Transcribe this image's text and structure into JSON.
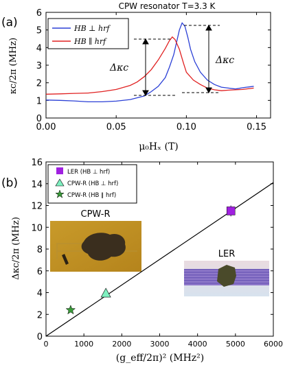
{
  "chart_data": [
    {
      "panel_label": "(a)",
      "type": "line",
      "title": "CPW resonator  T=3.3 K",
      "xlabel": "μ₀Hₓ  (T)",
      "ylabel": "κc/2π (MHz)",
      "xlim": [
        0.0,
        0.16
      ],
      "ylim": [
        0,
        6
      ],
      "xticks": [
        "0.00",
        "0.05",
        "0.10",
        "0.15"
      ],
      "yticks": [
        "0",
        "1",
        "2",
        "3",
        "4",
        "5",
        "6"
      ],
      "legend_position": "top-left",
      "annotation": "Δκc",
      "series": [
        {
          "name": "HB ⊥ hrf",
          "color": "#2a3fd6",
          "points": [
            [
              0.0,
              1.02
            ],
            [
              0.01,
              1.0
            ],
            [
              0.02,
              0.97
            ],
            [
              0.03,
              0.92
            ],
            [
              0.04,
              0.92
            ],
            [
              0.05,
              0.96
            ],
            [
              0.06,
              1.05
            ],
            [
              0.07,
              1.25
            ],
            [
              0.075,
              1.5
            ],
            [
              0.08,
              1.8
            ],
            [
              0.085,
              2.3
            ],
            [
              0.088,
              2.9
            ],
            [
              0.091,
              3.6
            ],
            [
              0.093,
              4.3
            ],
            [
              0.095,
              5.0
            ],
            [
              0.097,
              5.4
            ],
            [
              0.099,
              5.2
            ],
            [
              0.101,
              4.6
            ],
            [
              0.103,
              3.9
            ],
            [
              0.106,
              3.2
            ],
            [
              0.11,
              2.6
            ],
            [
              0.115,
              2.15
            ],
            [
              0.12,
              1.9
            ],
            [
              0.125,
              1.75
            ],
            [
              0.13,
              1.7
            ],
            [
              0.135,
              1.65
            ],
            [
              0.14,
              1.72
            ],
            [
              0.148,
              1.8
            ]
          ]
        },
        {
          "name": "HB ∥ hrf",
          "color": "#e02020",
          "points": [
            [
              0.0,
              1.35
            ],
            [
              0.01,
              1.37
            ],
            [
              0.02,
              1.4
            ],
            [
              0.03,
              1.42
            ],
            [
              0.04,
              1.5
            ],
            [
              0.05,
              1.62
            ],
            [
              0.06,
              1.85
            ],
            [
              0.065,
              2.05
            ],
            [
              0.07,
              2.35
            ],
            [
              0.075,
              2.75
            ],
            [
              0.08,
              3.3
            ],
            [
              0.085,
              3.95
            ],
            [
              0.088,
              4.4
            ],
            [
              0.09,
              4.6
            ],
            [
              0.092,
              4.45
            ],
            [
              0.095,
              3.9
            ],
            [
              0.098,
              3.1
            ],
            [
              0.1,
              2.6
            ],
            [
              0.105,
              2.15
            ],
            [
              0.11,
              1.9
            ],
            [
              0.115,
              1.7
            ],
            [
              0.12,
              1.6
            ],
            [
              0.125,
              1.55
            ],
            [
              0.13,
              1.58
            ],
            [
              0.135,
              1.6
            ],
            [
              0.14,
              1.62
            ],
            [
              0.148,
              1.7
            ]
          ]
        }
      ]
    },
    {
      "panel_label": "(b)",
      "type": "scatter",
      "xlabel": "(g_eff/2π)²  (MHz²)",
      "ylabel": "Δκc/2π (MHz)",
      "xlim": [
        0,
        6000
      ],
      "ylim": [
        0,
        16
      ],
      "xticks": [
        "0",
        "1000",
        "2000",
        "3000",
        "4000",
        "5000",
        "6000"
      ],
      "yticks": [
        "0",
        "2",
        "4",
        "6",
        "8",
        "10",
        "12",
        "14",
        "16"
      ],
      "legend_position": "top-left",
      "fit_line": {
        "x": [
          0,
          6000
        ],
        "y": [
          0,
          14.1
        ]
      },
      "series": [
        {
          "name": "LER (HB ⊥ hrf)",
          "marker": "square",
          "color": "#a020e0",
          "x": 4880,
          "y": 11.5,
          "yerr": 0.5
        },
        {
          "name": "CPW-R (HB ⊥ hrf)",
          "marker": "triangle",
          "color": "#7ff0c0",
          "x": 1580,
          "y": 3.9
        },
        {
          "name": "CPW-R (HB ∥ hrf)",
          "marker": "star",
          "color": "#3a9a3a",
          "x": 650,
          "y": 2.4
        }
      ],
      "inset_labels": [
        "CPW-R",
        "LER"
      ]
    }
  ]
}
